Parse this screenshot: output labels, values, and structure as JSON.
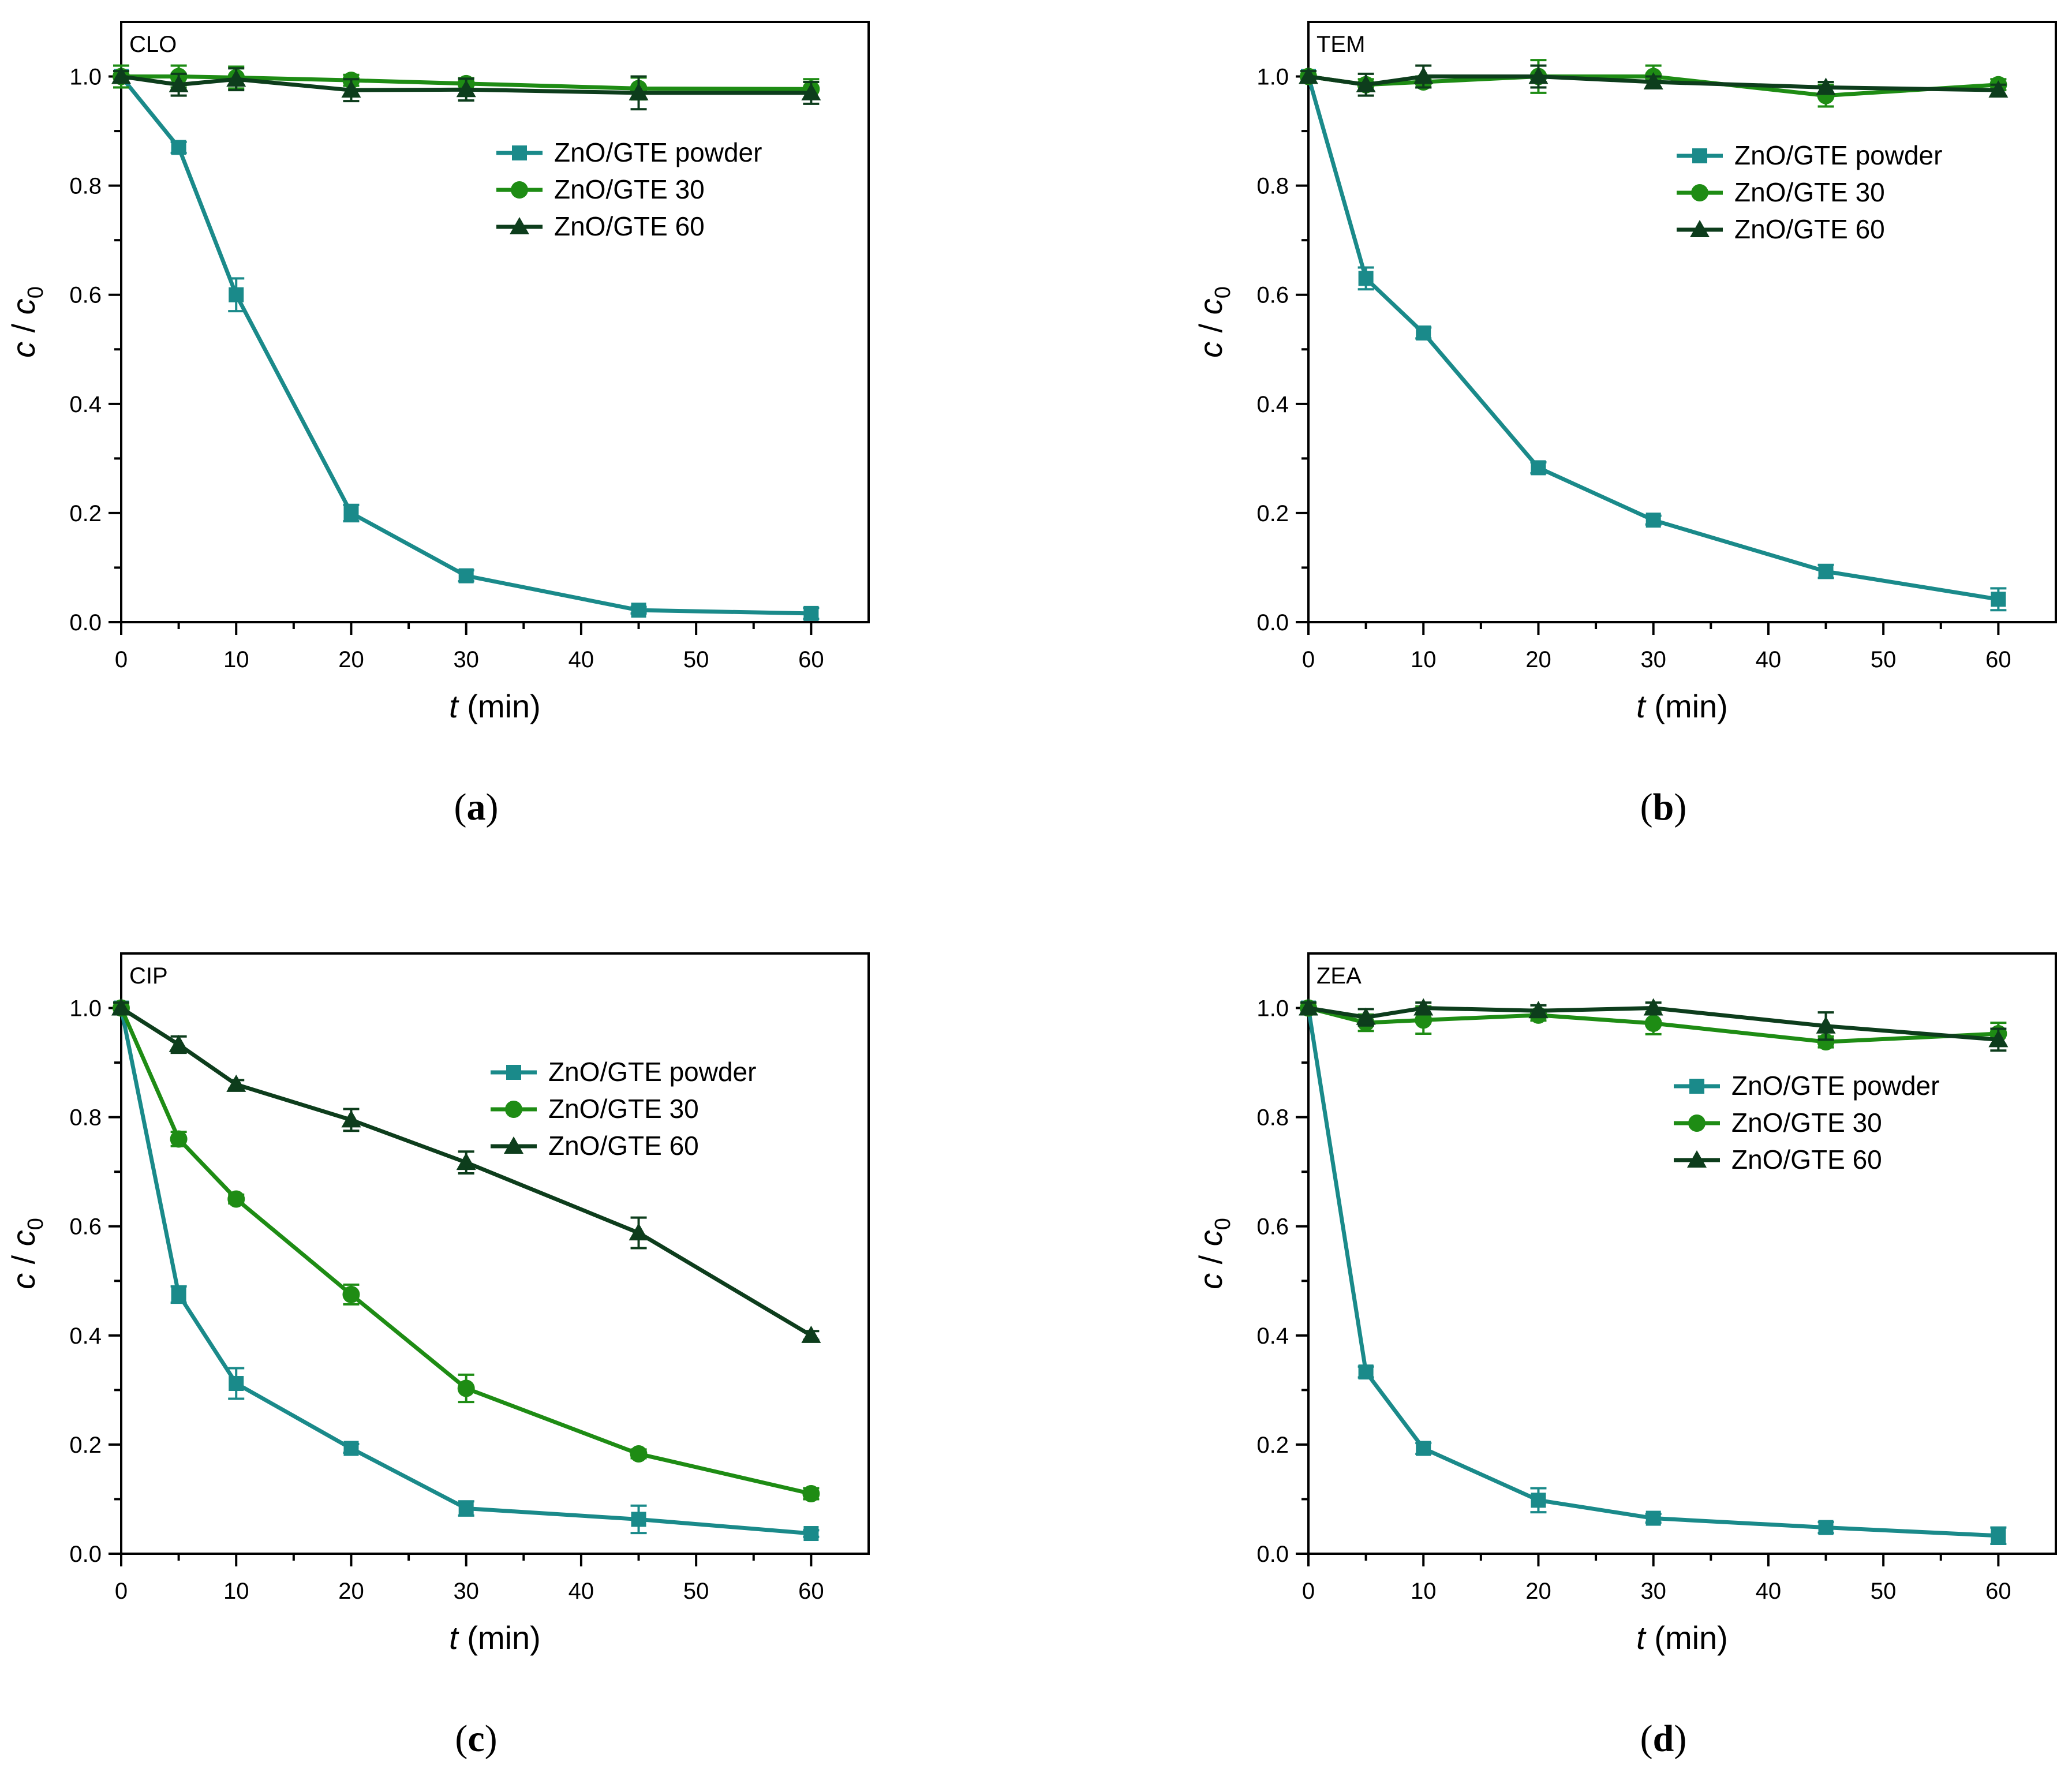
{
  "figure": {
    "colors": {
      "powder": "#1a8a8a",
      "g30": "#1e8c14",
      "g60": "#0d3d1c",
      "axis": "#000000"
    }
  },
  "chart_data": [
    {
      "type": "line",
      "panel": "(a)",
      "panel_letter": "a",
      "inset_label": "CLO",
      "xlabel_italic": "t",
      "xlabel_rest": " (min)",
      "ylabel_c": "c",
      "ylabel_sep": " / ",
      "ylabel_c0": "c",
      "ylabel_sub": "0",
      "xlim": [
        0,
        65
      ],
      "ylim": [
        0,
        1.1
      ],
      "xticks": [
        0,
        10,
        20,
        30,
        40,
        50,
        60
      ],
      "yticks": [
        0.0,
        0.2,
        0.4,
        0.6,
        0.8,
        1.0
      ],
      "ytick_labels": [
        "0.0",
        "0.2",
        "0.4",
        "0.6",
        "0.8",
        "1.0"
      ],
      "legend": "upper-right",
      "x": [
        0,
        5,
        10,
        20,
        30,
        45,
        60
      ],
      "series": [
        {
          "name": "ZnO/GTE powder",
          "marker": "square",
          "color": "#1a8a8a",
          "values": [
            1.0,
            0.87,
            0.6,
            0.2,
            0.085,
            0.022,
            0.016
          ],
          "errors": [
            0.01,
            0.01,
            0.03,
            0.015,
            0.01,
            0.006,
            0.01
          ]
        },
        {
          "name": "ZnO/GTE 30",
          "marker": "circle",
          "color": "#1e8c14",
          "values": [
            1.0,
            1.0,
            0.998,
            0.993,
            0.987,
            0.978,
            0.977
          ],
          "errors": [
            0.02,
            0.02,
            0.02,
            0.01,
            0.01,
            0.02,
            0.018
          ]
        },
        {
          "name": "ZnO/GTE 60",
          "marker": "triangle",
          "color": "#0d3d1c",
          "values": [
            1.0,
            0.985,
            0.995,
            0.975,
            0.976,
            0.97,
            0.97
          ],
          "errors": [
            0.01,
            0.02,
            0.02,
            0.02,
            0.02,
            0.03,
            0.02
          ]
        }
      ]
    },
    {
      "type": "line",
      "panel": "(b)",
      "panel_letter": "b",
      "inset_label": "TEM",
      "xlabel_italic": "t",
      "xlabel_rest": " (min)",
      "ylabel_c": "c",
      "ylabel_sep": " / ",
      "ylabel_c0": "c",
      "ylabel_sub": "0",
      "xlim": [
        0,
        65
      ],
      "ylim": [
        0,
        1.1
      ],
      "xticks": [
        0,
        10,
        20,
        30,
        40,
        50,
        60
      ],
      "yticks": [
        0.0,
        0.2,
        0.4,
        0.6,
        0.8,
        1.0
      ],
      "ytick_labels": [
        "0.0",
        "0.2",
        "0.4",
        "0.6",
        "0.8",
        "1.0"
      ],
      "legend": "upper-right",
      "x": [
        0,
        5,
        10,
        20,
        30,
        45,
        60
      ],
      "series": [
        {
          "name": "ZnO/GTE powder",
          "marker": "square",
          "color": "#1a8a8a",
          "values": [
            1.0,
            0.63,
            0.53,
            0.283,
            0.187,
            0.093,
            0.042
          ],
          "errors": [
            0.01,
            0.02,
            0.01,
            0.01,
            0.008,
            0.012,
            0.02
          ]
        },
        {
          "name": "ZnO/GTE 30",
          "marker": "circle",
          "color": "#1e8c14",
          "values": [
            1.0,
            0.985,
            0.99,
            1.0,
            1.0,
            0.965,
            0.985
          ],
          "errors": [
            0.01,
            0.01,
            0.01,
            0.03,
            0.02,
            0.02,
            0.01
          ]
        },
        {
          "name": "ZnO/GTE 60",
          "marker": "triangle",
          "color": "#0d3d1c",
          "values": [
            1.0,
            0.985,
            1.0,
            1.0,
            0.99,
            0.98,
            0.975
          ],
          "errors": [
            0.01,
            0.02,
            0.02,
            0.02,
            0.01,
            0.01,
            0.01
          ]
        }
      ]
    },
    {
      "type": "line",
      "panel": "(c)",
      "panel_letter": "c",
      "inset_label": "CIP",
      "xlabel_italic": "t",
      "xlabel_rest": " (min)",
      "ylabel_c": "c",
      "ylabel_sep": " / ",
      "ylabel_c0": "c",
      "ylabel_sub": "0",
      "xlim": [
        0,
        65
      ],
      "ylim": [
        0,
        1.1
      ],
      "xticks": [
        0,
        10,
        20,
        30,
        40,
        50,
        60
      ],
      "yticks": [
        0.0,
        0.2,
        0.4,
        0.6,
        0.8,
        1.0
      ],
      "ytick_labels": [
        "0.0",
        "0.2",
        "0.4",
        "0.6",
        "0.8",
        "1.0"
      ],
      "legend": "upper-right",
      "x": [
        0,
        5,
        10,
        20,
        30,
        45,
        60
      ],
      "series": [
        {
          "name": "ZnO/GTE powder",
          "marker": "square",
          "color": "#1a8a8a",
          "values": [
            1.0,
            0.475,
            0.312,
            0.193,
            0.083,
            0.063,
            0.037
          ],
          "errors": [
            0.01,
            0.015,
            0.028,
            0.008,
            0.013,
            0.025,
            0.006
          ]
        },
        {
          "name": "ZnO/GTE 30",
          "marker": "circle",
          "color": "#1e8c14",
          "values": [
            1.0,
            0.76,
            0.65,
            0.475,
            0.303,
            0.183,
            0.11
          ],
          "errors": [
            0.01,
            0.013,
            0.008,
            0.018,
            0.025,
            0.008,
            0.01
          ]
        },
        {
          "name": "ZnO/GTE 60",
          "marker": "triangle",
          "color": "#0d3d1c",
          "values": [
            1.0,
            0.933,
            0.86,
            0.795,
            0.717,
            0.588,
            0.4
          ],
          "errors": [
            0.01,
            0.015,
            0.008,
            0.02,
            0.02,
            0.028,
            0.008
          ]
        }
      ]
    },
    {
      "type": "line",
      "panel": "(d)",
      "panel_letter": "d",
      "inset_label": "ZEA",
      "xlabel_italic": "t",
      "xlabel_rest": " (min)",
      "ylabel_c": "c",
      "ylabel_sep": " / ",
      "ylabel_c0": "c",
      "ylabel_sub": "0",
      "xlim": [
        0,
        65
      ],
      "ylim": [
        0,
        1.1
      ],
      "xticks": [
        0,
        10,
        20,
        30,
        40,
        50,
        60
      ],
      "yticks": [
        0.0,
        0.2,
        0.4,
        0.6,
        0.8,
        1.0
      ],
      "ytick_labels": [
        "0.0",
        "0.2",
        "0.4",
        "0.6",
        "0.8",
        "1.0"
      ],
      "legend": "upper-right",
      "x": [
        0,
        5,
        10,
        20,
        30,
        45,
        60
      ],
      "series": [
        {
          "name": "ZnO/GTE powder",
          "marker": "square",
          "color": "#1a8a8a",
          "values": [
            1.0,
            0.333,
            0.193,
            0.098,
            0.065,
            0.048,
            0.033
          ],
          "errors": [
            0.01,
            0.01,
            0.01,
            0.022,
            0.008,
            0.01,
            0.015
          ]
        },
        {
          "name": "ZnO/GTE 30",
          "marker": "circle",
          "color": "#1e8c14",
          "values": [
            1.0,
            0.973,
            0.978,
            0.987,
            0.972,
            0.938,
            0.953
          ],
          "errors": [
            0.01,
            0.015,
            0.025,
            0.01,
            0.02,
            0.01,
            0.02
          ]
        },
        {
          "name": "ZnO/GTE 60",
          "marker": "triangle",
          "color": "#0d3d1c",
          "values": [
            1.0,
            0.983,
            1.0,
            0.995,
            1.0,
            0.967,
            0.942
          ],
          "errors": [
            0.01,
            0.015,
            0.01,
            0.01,
            0.01,
            0.025,
            0.02
          ]
        }
      ]
    }
  ]
}
